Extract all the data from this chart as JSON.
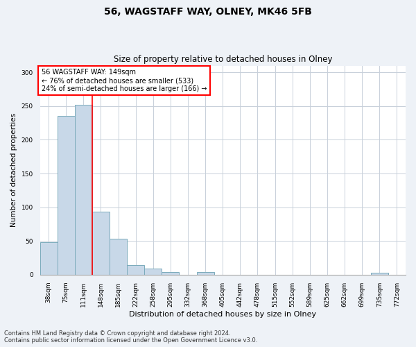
{
  "title": "56, WAGSTAFF WAY, OLNEY, MK46 5FB",
  "subtitle": "Size of property relative to detached houses in Olney",
  "xlabel": "Distribution of detached houses by size in Olney",
  "ylabel": "Number of detached properties",
  "categories": [
    "38sqm",
    "75sqm",
    "111sqm",
    "148sqm",
    "185sqm",
    "222sqm",
    "258sqm",
    "295sqm",
    "332sqm",
    "368sqm",
    "405sqm",
    "442sqm",
    "478sqm",
    "515sqm",
    "552sqm",
    "589sqm",
    "625sqm",
    "662sqm",
    "699sqm",
    "735sqm",
    "772sqm"
  ],
  "values": [
    48,
    235,
    252,
    93,
    53,
    14,
    9,
    4,
    0,
    4,
    0,
    0,
    0,
    0,
    0,
    0,
    0,
    0,
    0,
    3,
    0
  ],
  "bar_color": "#c8d8e8",
  "bar_edge_color": "#7aaabb",
  "red_line_index": 2.5,
  "marker_label": "56 WAGSTAFF WAY: 149sqm",
  "annotation_line1": "← 76% of detached houses are smaller (533)",
  "annotation_line2": "24% of semi-detached houses are larger (166) →",
  "marker_color": "red",
  "ylim": [
    0,
    310
  ],
  "yticks": [
    0,
    50,
    100,
    150,
    200,
    250,
    300
  ],
  "footnote1": "Contains HM Land Registry data © Crown copyright and database right 2024.",
  "footnote2": "Contains public sector information licensed under the Open Government Licence v3.0.",
  "background_color": "#eef2f7",
  "plot_bg_color": "#ffffff",
  "grid_color": "#c8d0da",
  "title_fontsize": 10,
  "subtitle_fontsize": 8.5,
  "xlabel_fontsize": 8,
  "ylabel_fontsize": 7.5,
  "tick_fontsize": 6.5,
  "footnote_fontsize": 6
}
